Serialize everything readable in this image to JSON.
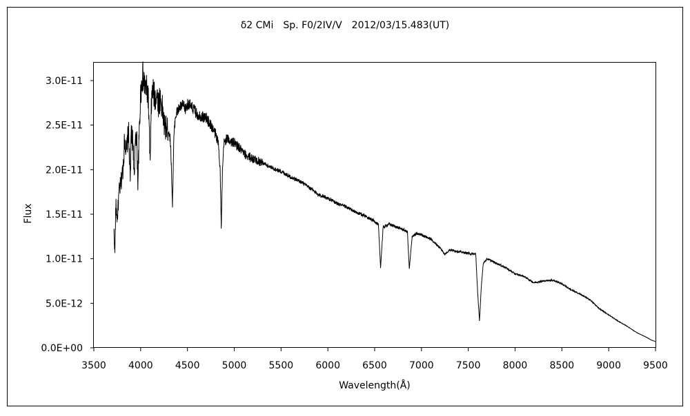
{
  "chart_data": {
    "type": "line",
    "title": "δ2 CMi　Sp. F0/2IV/V　2012/03/15.483(UT)",
    "xlabel": "Wavelength(Å)",
    "ylabel": "Flux",
    "xlim": [
      3500,
      9500
    ],
    "ylim": [
      0,
      3e-11
    ],
    "x_ticks": [
      3500,
      4000,
      4500,
      5000,
      5500,
      6000,
      6500,
      7000,
      7500,
      8000,
      8500,
      9000,
      9500
    ],
    "x_tick_labels": [
      "3500",
      "4000",
      "4500",
      "5000",
      "5500",
      "6000",
      "6500",
      "7000",
      "7500",
      "8000",
      "8500",
      "9000",
      "9500"
    ],
    "y_ticks": [
      0,
      5e-12,
      1e-11,
      1.5e-11,
      2e-11,
      2.5e-11,
      3e-11
    ],
    "y_tick_labels": [
      "0.0E+00",
      "5.0E-12",
      "1.0E-11",
      "1.5E-11",
      "2.0E-11",
      "2.5E-11",
      "3.0E-11"
    ],
    "grid": false,
    "legend": null,
    "series": [
      {
        "color": "#000000",
        "x": [
          3715,
          3725,
          3735,
          3750,
          3770,
          3790,
          3810,
          3830,
          3850,
          3870,
          3889,
          3900,
          3920,
          3933,
          3945,
          3960,
          3970,
          3985,
          4000,
          4020,
          4040,
          4060,
          4080,
          4102,
          4115,
          4130,
          4150,
          4170,
          4190,
          4210,
          4230,
          4250,
          4280,
          4300,
          4320,
          4340,
          4355,
          4370,
          4390,
          4420,
          4450,
          4480,
          4510,
          4540,
          4570,
          4600,
          4650,
          4700,
          4750,
          4800,
          4830,
          4850,
          4861,
          4875,
          4890,
          4920,
          4960,
          5000,
          5050,
          5100,
          5150,
          5200,
          5250,
          5300,
          5350,
          5400,
          5450,
          5500,
          5600,
          5700,
          5800,
          5900,
          6000,
          6100,
          6200,
          6300,
          6400,
          6500,
          6540,
          6563,
          6590,
          6650,
          6700,
          6750,
          6800,
          6850,
          6870,
          6900,
          6950,
          7000,
          7100,
          7200,
          7250,
          7300,
          7400,
          7500,
          7580,
          7600,
          7620,
          7640,
          7660,
          7700,
          7800,
          7900,
          8000,
          8100,
          8200,
          8300,
          8400,
          8500,
          8600,
          8700,
          8800,
          8900,
          9000,
          9100,
          9200,
          9300,
          9400,
          9450,
          9500
        ],
        "y": [
          1.3e-11,
          1.08e-11,
          1.6e-11,
          1.45e-11,
          1.75e-11,
          1.85e-11,
          2e-11,
          2.35e-11,
          2.2e-11,
          2.45e-11,
          1.9e-11,
          2.4e-11,
          2.3e-11,
          1.85e-11,
          2.45e-11,
          2.3e-11,
          1.85e-11,
          2.4e-11,
          2.85e-11,
          3.05e-11,
          2.95e-11,
          2.9e-11,
          2.85e-11,
          2.05e-11,
          2.75e-11,
          2.9e-11,
          2.8e-11,
          2.85e-11,
          2.75e-11,
          2.8e-11,
          2.7e-11,
          2.5e-11,
          2.45e-11,
          2.45e-11,
          2.3e-11,
          1.6e-11,
          2.35e-11,
          2.6e-11,
          2.65e-11,
          2.7e-11,
          2.72e-11,
          2.68e-11,
          2.75e-11,
          2.7e-11,
          2.68e-11,
          2.62e-11,
          2.6e-11,
          2.58e-11,
          2.5e-11,
          2.4e-11,
          2.3e-11,
          2e-11,
          1.33e-11,
          2e-11,
          2.3e-11,
          2.35e-11,
          2.32e-11,
          2.3e-11,
          2.25e-11,
          2.18e-11,
          2.15e-11,
          2.12e-11,
          2.1e-11,
          2.08e-11,
          2.05e-11,
          2.02e-11,
          2e-11,
          1.98e-11,
          1.92e-11,
          1.87e-11,
          1.8e-11,
          1.72e-11,
          1.68e-11,
          1.62e-11,
          1.58e-11,
          1.52e-11,
          1.48e-11,
          1.42e-11,
          1.38e-11,
          9e-12,
          1.35e-11,
          1.39e-11,
          1.37e-11,
          1.35e-11,
          1.33e-11,
          1.3e-11,
          8.8e-12,
          1.25e-11,
          1.28e-11,
          1.27e-11,
          1.22e-11,
          1.12e-11,
          1.05e-11,
          1.1e-11,
          1.08e-11,
          1.06e-11,
          1.05e-11,
          6.2e-12,
          3e-12,
          7e-12,
          9.5e-12,
          1e-11,
          9.5e-12,
          9e-12,
          8.3e-12,
          8e-12,
          7.3e-12,
          7.5e-12,
          7.6e-12,
          7.2e-12,
          6.5e-12,
          6e-12,
          5.4e-12,
          4.4e-12,
          3.7e-12,
          3e-12,
          2.4e-12,
          1.7e-12,
          1.2e-12,
          9e-13,
          7e-13
        ]
      }
    ]
  }
}
